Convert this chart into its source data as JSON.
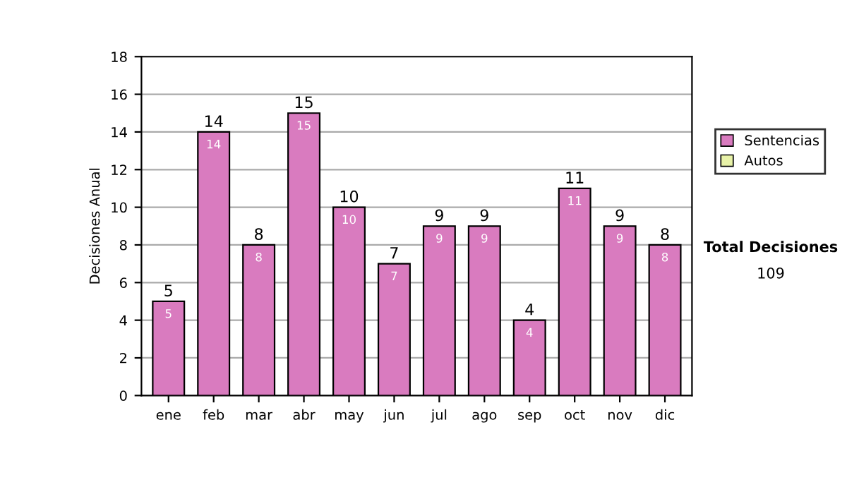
{
  "chart_data": {
    "type": "bar",
    "ylabel": "Decisiones Anual",
    "categories": [
      "ene",
      "feb",
      "mar",
      "abr",
      "may",
      "jun",
      "jul",
      "ago",
      "sep",
      "oct",
      "nov",
      "dic"
    ],
    "series": [
      {
        "name": "Sentencias",
        "color": "#d97bbf",
        "values": [
          5,
          14,
          8,
          15,
          10,
          7,
          9,
          9,
          4,
          11,
          9,
          8
        ],
        "value_labels": [
          "5",
          "14",
          "8",
          "15",
          "10",
          "7",
          "9",
          "9",
          "4",
          "11",
          "9",
          "8"
        ]
      },
      {
        "name": "Autos",
        "color": "#e8f2a8",
        "values": [
          null,
          null,
          null,
          null,
          null,
          null,
          null,
          null,
          null,
          null,
          null,
          null
        ]
      }
    ],
    "stacked": true,
    "totals": [
      "5",
      "14",
      "8",
      "15",
      "10",
      "7",
      "9",
      "9",
      "4",
      "11",
      "9",
      "8"
    ],
    "ylim": [
      0,
      18
    ],
    "yticks": [
      0,
      2,
      4,
      6,
      8,
      10,
      12,
      14,
      16,
      18
    ],
    "grid": "y",
    "legend": "right",
    "annotations": [
      "Total Decisiones",
      "109"
    ]
  }
}
